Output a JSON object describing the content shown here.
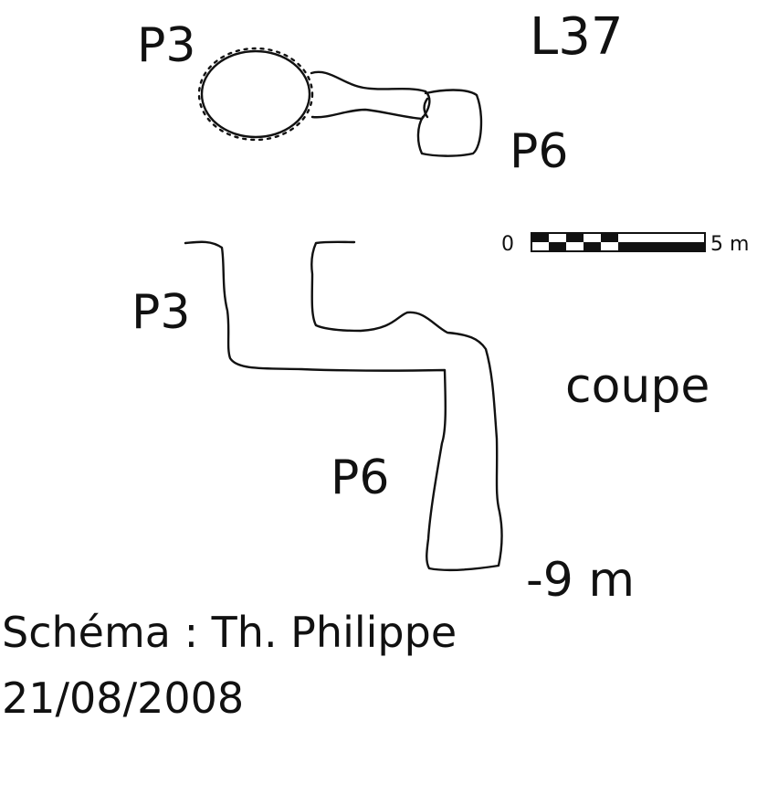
{
  "labels": {
    "title": "L37",
    "plan_p3": "P3",
    "plan_p6": "P6",
    "section_p3": "P3",
    "section_p6": "P6",
    "section_title": "coupe",
    "depth": "-9 m"
  },
  "scale_bar": {
    "start_label": "0",
    "end_label": "5 m"
  },
  "credit": {
    "author": "Schéma : Th. Philippe",
    "date": "21/08/2008"
  },
  "colors": {
    "ink": "#111111",
    "background": "#ffffff"
  }
}
